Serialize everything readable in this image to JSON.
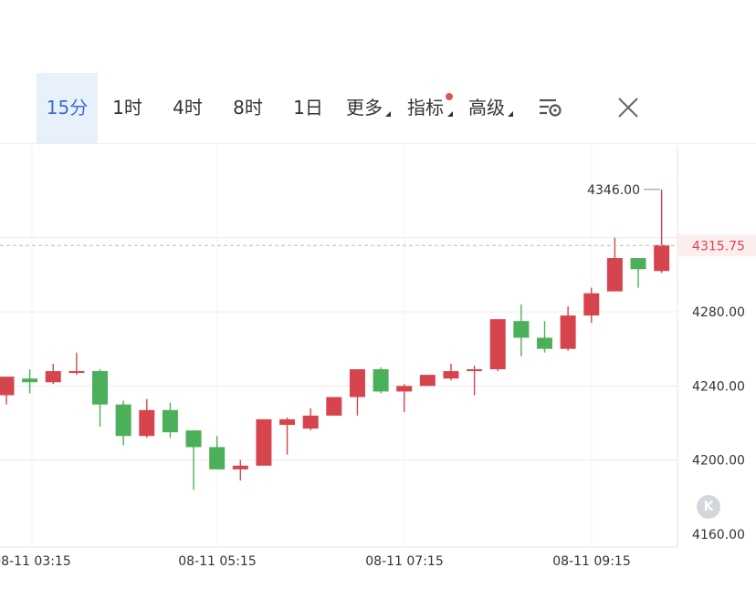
{
  "toolbar": {
    "tabs": [
      {
        "label": "15分",
        "active": true
      },
      {
        "label": "1时"
      },
      {
        "label": "4时"
      },
      {
        "label": "8时"
      },
      {
        "label": "1日"
      }
    ],
    "more_label": "更多",
    "indicator_label": "指标",
    "advanced_label": "高级",
    "settings_icon": "chart-settings-icon",
    "close_icon": "close-icon",
    "colors": {
      "active_bg": "#e8f0fb",
      "active_text": "#3b6fcf",
      "dot": "#e05454"
    }
  },
  "chart": {
    "k_button_label": "K",
    "price_tag": "4315.75",
    "high_label": "4346.00"
  },
  "chart_data": {
    "type": "candlestick",
    "xlabels": [
      "08-11 03:15",
      "08-11 05:15",
      "08-11 07:15",
      "08-11 09:15"
    ],
    "ytick_labels": [
      "4280.00",
      "4240.00",
      "4200.00",
      "4160.00"
    ],
    "yticks": [
      4280,
      4240,
      4200,
      4160
    ],
    "last_price": 4315.75,
    "high_marker": 4346,
    "colors": {
      "up": "#d6454e",
      "down": "#4caf5a",
      "grid": "#ececec",
      "price_line": "#d6454e"
    },
    "candles": [
      {
        "o": 4235,
        "h": 4245,
        "l": 4230,
        "c": 4245
      },
      {
        "o": 4244,
        "h": 4249,
        "l": 4236,
        "c": 4242
      },
      {
        "o": 4242,
        "h": 4252,
        "l": 4241,
        "c": 4248
      },
      {
        "o": 4247,
        "h": 4258,
        "l": 4246,
        "c": 4248
      },
      {
        "o": 4248,
        "h": 4249,
        "l": 4218,
        "c": 4230
      },
      {
        "o": 4230,
        "h": 4232,
        "l": 4208,
        "c": 4213
      },
      {
        "o": 4213,
        "h": 4233,
        "l": 4212,
        "c": 4227
      },
      {
        "o": 4227,
        "h": 4231,
        "l": 4212,
        "c": 4215
      },
      {
        "o": 4216,
        "h": 4216,
        "l": 4184,
        "c": 4207
      },
      {
        "o": 4207,
        "h": 4213,
        "l": 4195,
        "c": 4195
      },
      {
        "o": 4195,
        "h": 4200,
        "l": 4189,
        "c": 4197
      },
      {
        "o": 4197,
        "h": 4222,
        "l": 4197,
        "c": 4222
      },
      {
        "o": 4219,
        "h": 4223,
        "l": 4203,
        "c": 4222
      },
      {
        "o": 4217,
        "h": 4228,
        "l": 4216,
        "c": 4224
      },
      {
        "o": 4224,
        "h": 4234,
        "l": 4224,
        "c": 4234
      },
      {
        "o": 4234,
        "h": 4249,
        "l": 4224,
        "c": 4249
      },
      {
        "o": 4249,
        "h": 4250,
        "l": 4236,
        "c": 4237
      },
      {
        "o": 4237,
        "h": 4241,
        "l": 4226,
        "c": 4240
      },
      {
        "o": 4240,
        "h": 4246,
        "l": 4240,
        "c": 4246
      },
      {
        "o": 4244,
        "h": 4252,
        "l": 4243,
        "c": 4248
      },
      {
        "o": 4249,
        "h": 4251,
        "l": 4235,
        "c": 4249
      },
      {
        "o": 4249,
        "h": 4276,
        "l": 4248,
        "c": 4276
      },
      {
        "o": 4275,
        "h": 4284,
        "l": 4256,
        "c": 4266
      },
      {
        "o": 4266,
        "h": 4275,
        "l": 4258,
        "c": 4260
      },
      {
        "o": 4260,
        "h": 4283,
        "l": 4259,
        "c": 4278
      },
      {
        "o": 4278,
        "h": 4293,
        "l": 4274,
        "c": 4290
      },
      {
        "o": 4291,
        "h": 4320,
        "l": 4291,
        "c": 4309
      },
      {
        "o": 4309,
        "h": 4309,
        "l": 4293,
        "c": 4303
      },
      {
        "o": 4302,
        "h": 4346,
        "l": 4301,
        "c": 4316
      }
    ]
  }
}
